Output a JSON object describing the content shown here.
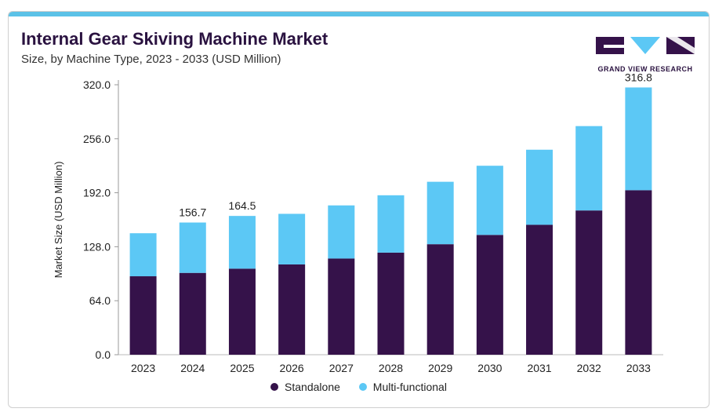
{
  "header": {
    "title": "Internal Gear Skiving Machine Market",
    "subtitle": "Size, by Machine Type, 2023 - 2033 (USD Million)"
  },
  "logo": {
    "text": "GRAND VIEW RESEARCH"
  },
  "colors": {
    "standalone": "#35124a",
    "multi": "#5cc8f5",
    "accent": "#5bc2e7"
  },
  "chart_data": {
    "type": "bar",
    "stacked": true,
    "categories": [
      "2023",
      "2024",
      "2025",
      "2026",
      "2027",
      "2028",
      "2029",
      "2030",
      "2031",
      "2032",
      "2033"
    ],
    "series": [
      {
        "name": "Standalone",
        "values": [
          93,
          97,
          102,
          107,
          114,
          121,
          131,
          142,
          154,
          171,
          195
        ]
      },
      {
        "name": "Multi-functional",
        "values": [
          51,
          59.7,
          62.5,
          60,
          63,
          68,
          74,
          82,
          89,
          100,
          121.8
        ]
      }
    ],
    "totals_labels": {
      "2024": "156.7",
      "2025": "164.5",
      "2033": "316.8"
    },
    "ylabel": "Market Size (USD Million)",
    "ylim": [
      0,
      320
    ],
    "yticks": [
      "0.0",
      "64.0",
      "128.0",
      "192.0",
      "256.0",
      "320.0"
    ],
    "legend_position": "bottom"
  }
}
